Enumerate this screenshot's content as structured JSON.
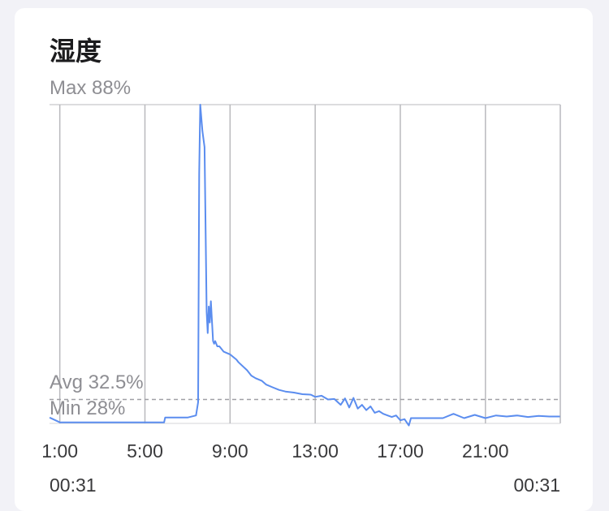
{
  "card": {
    "title": "湿度",
    "max_label": "Max 88%",
    "avg_label": "Avg 32.5%",
    "min_label": "Min 28%",
    "range_start": "00:31",
    "range_end": "00:31"
  },
  "chart_data": {
    "type": "line",
    "title": "湿度",
    "xlabel": "",
    "ylabel": "",
    "x_unit": "hour",
    "xlim": [
      0.517,
      24.517
    ],
    "ylim": [
      28,
      88
    ],
    "avg": 32.5,
    "grid": "vertical",
    "tick_hours": [
      1,
      5,
      9,
      13,
      17,
      21
    ],
    "tick_labels": [
      "1:00",
      "5:00",
      "9:00",
      "13:00",
      "17:00",
      "21:00"
    ],
    "line_color": "#5b8def",
    "grid_color": "#b9b9bd",
    "avg_line_color": "#a0a0a5",
    "series": [
      {
        "x": [
          0.52,
          1.0,
          4.5,
          5.0,
          5.9,
          5.95,
          6.5,
          7.0,
          7.4,
          7.5,
          7.55,
          7.6,
          7.7,
          7.8,
          7.9,
          7.95,
          8.0,
          8.05,
          8.1,
          8.2,
          8.25,
          8.3,
          8.4,
          8.5,
          8.6,
          8.7,
          9.0,
          9.3,
          9.4,
          9.8,
          10.0,
          10.2,
          10.5,
          10.7,
          11.0,
          11.3,
          11.6,
          12.0,
          12.4,
          12.8,
          13.0,
          13.3,
          13.6,
          13.9,
          14.2,
          14.4,
          14.6,
          14.8,
          15.0,
          15.2,
          15.4,
          15.6,
          15.8,
          16.0,
          16.2,
          16.4,
          16.6,
          16.8,
          17.0,
          17.2,
          17.4,
          17.5,
          18.0,
          18.5,
          19.0,
          19.5,
          20.0,
          20.5,
          21.0,
          21.5,
          22.0,
          22.5,
          23.0,
          23.5,
          24.0,
          24.5
        ],
        "y": [
          29.1,
          28.2,
          28.2,
          28.2,
          28.2,
          29.1,
          29.1,
          29.1,
          29.5,
          32.0,
          75.0,
          88.0,
          83.0,
          80.0,
          49.0,
          45.0,
          50.0,
          47.0,
          51.0,
          43.5,
          43.0,
          43.5,
          42.5,
          42.5,
          42.0,
          41.5,
          41.0,
          40.0,
          39.5,
          38.0,
          37.0,
          36.5,
          36.0,
          35.3,
          34.8,
          34.3,
          34.0,
          33.8,
          33.5,
          33.4,
          33.0,
          33.2,
          32.5,
          32.6,
          31.5,
          32.7,
          31.0,
          32.8,
          30.8,
          31.5,
          30.5,
          31.2,
          30.0,
          30.3,
          29.8,
          29.5,
          29.2,
          29.5,
          28.6,
          28.8,
          27.6,
          29.0,
          29.0,
          29.0,
          29.0,
          29.8,
          29.0,
          29.6,
          29.0,
          29.5,
          29.3,
          29.5,
          29.2,
          29.4,
          29.3,
          29.3
        ]
      }
    ]
  }
}
